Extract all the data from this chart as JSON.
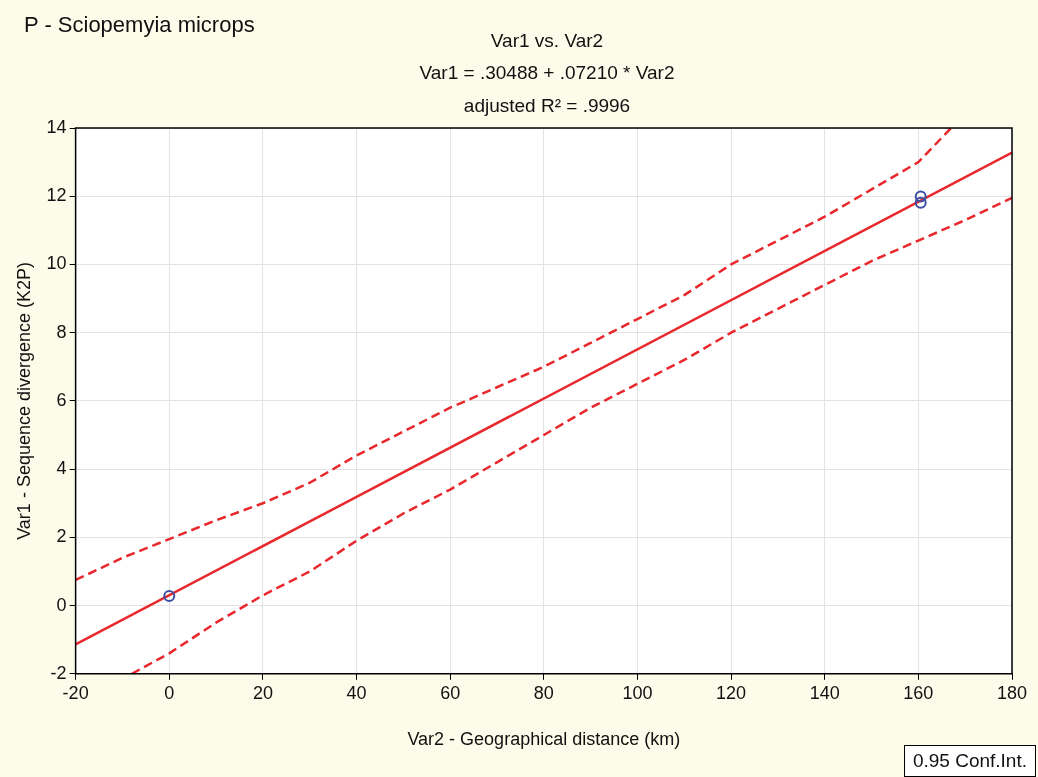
{
  "chart_data": {
    "type": "scatter",
    "title": "P - Sciopemyia microps",
    "subtitle": "Var1 vs. Var2",
    "annotations": [
      "Var1 = .30488 + .07210 * Var2",
      "adjusted R² = .9996",
      "0.95 Conf.Int."
    ],
    "xlabel": "Var2 - Geographical distance (km)",
    "ylabel": "Var1 - Sequence divergence (K2P)",
    "xlim": [
      -20,
      180
    ],
    "xticks": [
      -20,
      0,
      20,
      40,
      60,
      80,
      100,
      120,
      140,
      160,
      180
    ],
    "ylim": [
      -2,
      14
    ],
    "yticks": [
      -2,
      0,
      2,
      4,
      6,
      8,
      10,
      12,
      14
    ],
    "grid": true,
    "marker": "circle",
    "series": [
      {
        "color": "#3b4ea3",
        "x": [
          0,
          160.5,
          160.5
        ],
        "values": [
          0.28,
          11.99,
          11.81
        ]
      },
      {
        "type": "line",
        "color": "#e8282d",
        "line_style": "solid",
        "marker": "none",
        "x": [
          -20,
          180
        ],
        "values": [
          -1.14,
          13.28
        ]
      },
      {
        "type": "line",
        "color": "#e8282d",
        "line_style": "dashed",
        "marker": "none",
        "x": [
          -20,
          -10,
          0,
          10,
          20,
          30,
          40,
          50,
          60,
          70,
          80,
          90,
          100,
          110,
          120,
          130,
          140,
          150,
          160,
          167
        ],
        "values": [
          0.75,
          1.4,
          1.95,
          2.5,
          3.0,
          3.6,
          4.4,
          5.1,
          5.8,
          6.4,
          7.0,
          7.7,
          8.4,
          9.1,
          10.0,
          10.7,
          11.4,
          12.2,
          13.0,
          14
        ]
      },
      {
        "type": "line",
        "color": "#e8282d",
        "line_style": "dashed",
        "marker": "none",
        "x": [
          -8,
          0,
          10,
          20,
          30,
          40,
          50,
          60,
          70,
          80,
          90,
          100,
          110,
          120,
          130,
          140,
          150,
          160,
          170,
          180
        ],
        "values": [
          -2,
          -1.4,
          -0.5,
          0.3,
          1.0,
          1.9,
          2.7,
          3.4,
          4.2,
          5.0,
          5.8,
          6.5,
          7.2,
          8.0,
          8.7,
          9.4,
          10.1,
          10.7,
          11.3,
          11.95
        ]
      }
    ]
  }
}
